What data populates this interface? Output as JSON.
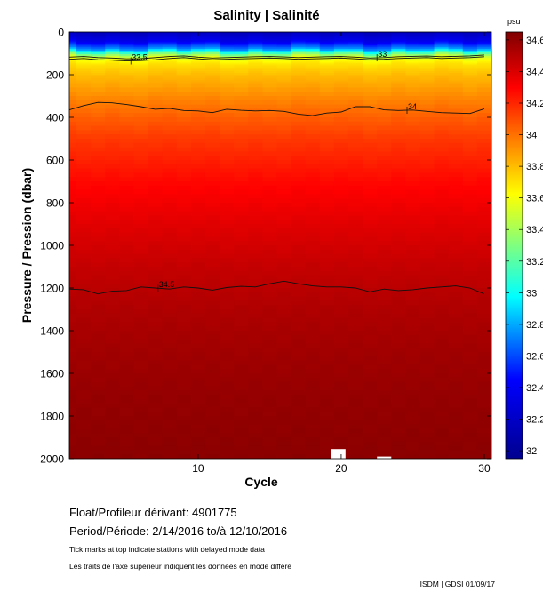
{
  "chart_data": {
    "type": "heatmap",
    "title": "Salinity | Salinité",
    "xlabel": "Cycle",
    "ylabel": "Pressure / Pression (dbar)",
    "units": "psu",
    "xlim": [
      1,
      30.5
    ],
    "ylim": [
      2000,
      0
    ],
    "x_ticks": [
      10,
      20,
      30
    ],
    "y_ticks": [
      0,
      200,
      400,
      600,
      800,
      1000,
      1200,
      1400,
      1600,
      1800,
      2000
    ],
    "colorbar": {
      "range": [
        31.95,
        34.65
      ],
      "ticks": [
        32,
        32.2,
        32.4,
        32.6,
        32.8,
        33,
        33.2,
        33.4,
        33.6,
        33.8,
        34,
        34.2,
        34.4,
        34.6
      ],
      "tick_labels": [
        "32",
        "32.2",
        "32.4",
        "32.6",
        "32.8",
        "33",
        "33.2",
        "33.4",
        "33.6",
        "33.8",
        "34",
        "34.2",
        "34.4",
        "34.6"
      ]
    },
    "salinity_profile": {
      "pressure": [
        0,
        40,
        80,
        105,
        120,
        150,
        200,
        300,
        400,
        500,
        700,
        900,
        1100,
        1300,
        1500,
        1700,
        1900,
        2000
      ],
      "salinity": [
        32.15,
        32.35,
        32.75,
        33.3,
        33.55,
        33.7,
        33.8,
        33.93,
        34.05,
        34.15,
        34.28,
        34.38,
        34.46,
        34.52,
        34.56,
        34.59,
        34.61,
        34.62
      ]
    },
    "contours": [
      {
        "label": "33",
        "cycles": [
          1,
          2,
          3,
          4,
          5,
          6,
          7,
          8,
          9,
          10,
          11,
          12,
          13,
          14,
          15,
          16,
          17,
          18,
          19,
          20,
          21,
          22,
          23,
          24,
          25,
          26,
          27,
          28,
          29,
          30
        ],
        "pressure": [
          118,
          115,
          120,
          122,
          126,
          125,
          120,
          115,
          112,
          118,
          122,
          120,
          118,
          116,
          115,
          117,
          120,
          118,
          116,
          115,
          118,
          122,
          120,
          116,
          114,
          113,
          116,
          114,
          112,
          108
        ],
        "label_cycle": 22.5
      },
      {
        "label": "33.5",
        "cycles": [
          1,
          2,
          3,
          4,
          5,
          6,
          7,
          8,
          9,
          10,
          11,
          12,
          13,
          14,
          15,
          16,
          17,
          18,
          19,
          20,
          21,
          22,
          23,
          24,
          25,
          26,
          27,
          28,
          29,
          30
        ],
        "pressure": [
          128,
          124,
          130,
          132,
          136,
          134,
          130,
          124,
          120,
          126,
          130,
          128,
          126,
          124,
          122,
          124,
          128,
          126,
          124,
          122,
          126,
          130,
          128,
          124,
          122,
          120,
          124,
          122,
          120,
          116
        ],
        "label_cycle": 5.3
      },
      {
        "label": "34",
        "cycles": [
          1,
          2,
          3,
          4,
          5,
          6,
          7,
          8,
          9,
          10,
          11,
          12,
          13,
          14,
          15,
          16,
          17,
          18,
          19,
          20,
          21,
          22,
          23,
          24,
          25,
          26,
          27,
          28,
          29,
          30
        ],
        "pressure": [
          365,
          345,
          330,
          332,
          340,
          350,
          362,
          358,
          368,
          370,
          378,
          362,
          367,
          370,
          368,
          372,
          385,
          392,
          380,
          375,
          350,
          350,
          365,
          368,
          366,
          372,
          378,
          380,
          382,
          360
        ],
        "label_cycle": 24.6
      },
      {
        "label": "34.5",
        "cycles": [
          1,
          2,
          3,
          4,
          5,
          6,
          7,
          8,
          9,
          10,
          11,
          12,
          13,
          14,
          15,
          16,
          17,
          18,
          19,
          20,
          21,
          22,
          23,
          24,
          25,
          26,
          27,
          28,
          29,
          30
        ],
        "pressure": [
          1205,
          1208,
          1228,
          1215,
          1212,
          1195,
          1200,
          1205,
          1195,
          1200,
          1210,
          1198,
          1192,
          1195,
          1180,
          1168,
          1180,
          1190,
          1195,
          1195,
          1200,
          1218,
          1205,
          1212,
          1208,
          1200,
          1195,
          1190,
          1200,
          1228
        ],
        "label_cycle": 7.2
      }
    ],
    "colors": {
      "c0": "#00008f",
      "c1": "#0000ff",
      "c2": "#00ffff",
      "c3": "#ffff00",
      "c4": "#ff0000",
      "c5": "#800000"
    }
  },
  "float_label": "Float/Profileur dérivant:",
  "float_id": "4901775",
  "period_label": "Period/Période:",
  "period_start": "2/14/2016",
  "period_sep": "to/à",
  "period_end": "12/10/2016",
  "note_en": "Tick marks at top indicate stations with delayed mode data",
  "note_fr": "Les traits de l'axe supérieur indiquent les données en mode différé",
  "credit": "ISDM | GDSI 01/09/17"
}
